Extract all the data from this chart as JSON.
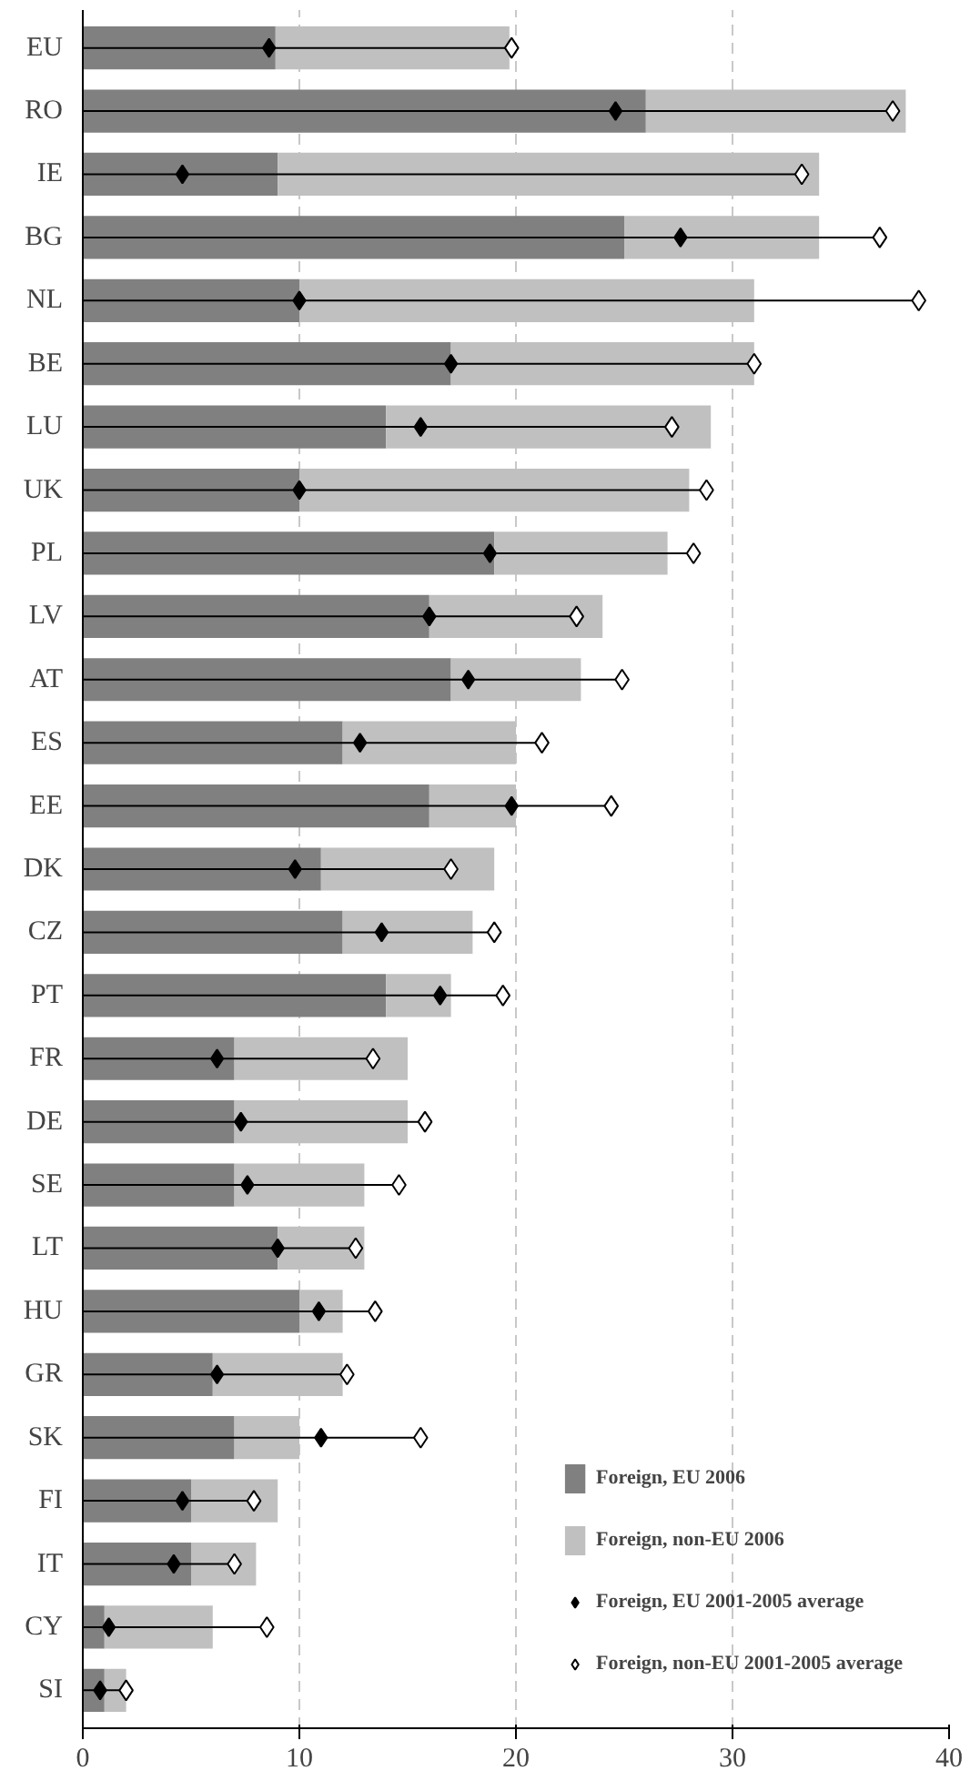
{
  "chart_data": {
    "type": "bar",
    "orientation": "horizontal",
    "stacked": true,
    "categories": [
      "EU",
      "RO",
      "IE",
      "BG",
      "NL",
      "BE",
      "LU",
      "UK",
      "PL",
      "LV",
      "AT",
      "ES",
      "EE",
      "DK",
      "CZ",
      "PT",
      "FR",
      "DE",
      "SE",
      "LT",
      "HU",
      "GR",
      "SK",
      "FI",
      "IT",
      "CY",
      "SI"
    ],
    "series": [
      {
        "name": "Foreign, EU 2006",
        "color": "#808080",
        "values": [
          8.9,
          26,
          9,
          25,
          10,
          17,
          14,
          10,
          19,
          16,
          17,
          12,
          16,
          11,
          12,
          14,
          7,
          7,
          7,
          9,
          10,
          6,
          7,
          5,
          5,
          1,
          1
        ]
      },
      {
        "name": "Foreign, non-EU 2006",
        "color": "#c0c0c0",
        "values": [
          10.8,
          12,
          25,
          9,
          21,
          14,
          15,
          18,
          8,
          8,
          6,
          8,
          4,
          8,
          6,
          3,
          8,
          8,
          6,
          4,
          2,
          6,
          3,
          4,
          3,
          5,
          1
        ]
      },
      {
        "name": "Foreign, non-EU 2001-2005 average",
        "type": "lollipop",
        "color": "#ffffff",
        "values": [
          19.8,
          37.4,
          33.2,
          36.8,
          38.6,
          31.0,
          27.2,
          28.8,
          28.2,
          22.8,
          24.9,
          21.2,
          24.4,
          17.0,
          19.0,
          19.4,
          13.4,
          15.8,
          14.6,
          12.6,
          13.5,
          12.2,
          15.6,
          7.9,
          7.0,
          8.5,
          2.0
        ]
      },
      {
        "name": "Foreign, EU 2001-2005 average",
        "type": "scatter",
        "color": "#000000",
        "values": [
          8.6,
          24.6,
          4.6,
          27.6,
          10.0,
          17.0,
          15.6,
          10.0,
          18.8,
          16.0,
          17.8,
          12.8,
          19.8,
          9.8,
          13.8,
          16.5,
          6.2,
          7.3,
          7.6,
          9.0,
          10.9,
          6.2,
          11.0,
          4.6,
          4.2,
          1.2,
          0.8
        ]
      }
    ],
    "xlim": [
      0,
      40
    ],
    "xticks": [
      0,
      10,
      20,
      30,
      40
    ],
    "grid": "x",
    "marker": "diamond",
    "legend": "bottom right"
  }
}
